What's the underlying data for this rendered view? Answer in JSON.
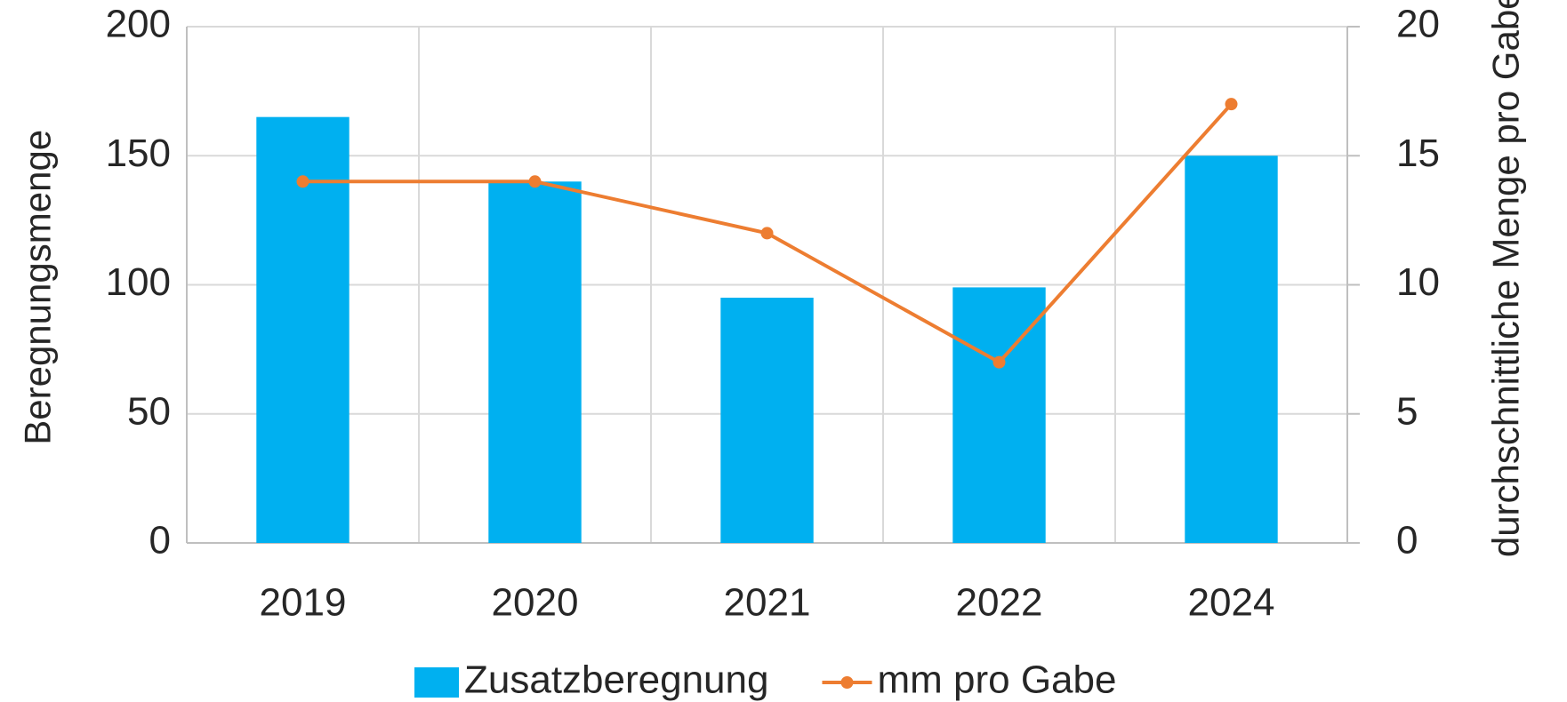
{
  "chart_data": {
    "type": "bar-line",
    "categories": [
      "2019",
      "2020",
      "2021",
      "2022",
      "2024"
    ],
    "series": [
      {
        "name": "Zusatzberegnung",
        "type": "bar",
        "color": "#00b0f0",
        "values": [
          165,
          140,
          95,
          99,
          150
        ]
      },
      {
        "name": "mm pro Gabe",
        "type": "line",
        "axis": "y2",
        "color": "#ed7d31",
        "values": [
          14,
          14,
          12,
          7,
          17
        ]
      }
    ],
    "y_label": "Beregnungsmenge",
    "y2_label": "durchschnittliche Menge pro Gabe",
    "ylim": [
      0,
      200
    ],
    "yticks": [
      0,
      50,
      100,
      150,
      200
    ],
    "y2lim": [
      0,
      20
    ],
    "y2ticks": [
      0,
      5,
      10,
      15,
      20
    ],
    "grid": true,
    "legend": "bottom"
  }
}
